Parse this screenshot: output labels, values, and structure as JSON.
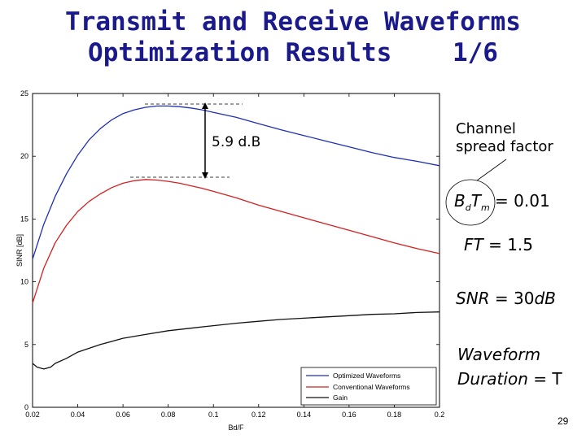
{
  "slide": {
    "title_line1": "Transmit and Receive Waveforms",
    "title_line2": "Optimization Results    1/6",
    "page_number": "29"
  },
  "annotations": {
    "gap_label": "5.9 d.B",
    "channel_label_line1": "Channel",
    "channel_label_line2": "spread factor"
  },
  "equations": {
    "bd_tm": {
      "lhs_main1": "B",
      "lhs_sub1": "d",
      "lhs_main2": "T",
      "lhs_sub2": "m",
      "rhs": "= 0.01"
    },
    "ft": {
      "lhs": "FT",
      "rhs": "= 1.5"
    },
    "snr": {
      "lhs": "SNR",
      "eq": " = 30",
      "unit": "dB"
    },
    "waveform_line1": "Waveform",
    "duration": {
      "lhs": "Duration",
      "rhs": " = T"
    }
  },
  "colors": {
    "title": "#1a1a8c",
    "optimized": "#1f2fb5",
    "conventional": "#d42020",
    "gain": "#111111"
  },
  "chart_data": {
    "type": "line",
    "title": "",
    "xlabel": "Bd/F",
    "ylabel": "SINR [dB]",
    "xlim": [
      0.02,
      0.2
    ],
    "ylim": [
      0,
      25
    ],
    "xticks": [
      "0.02",
      "0.04",
      "0.06",
      "0.08",
      "0.1",
      "0.12",
      "0.14",
      "0.16",
      "0.18",
      "0.2"
    ],
    "yticks": [
      "0",
      "5",
      "10",
      "15",
      "20",
      "25"
    ],
    "legend_position": "bottom-right",
    "series": [
      {
        "name": "Optimized Waveforms",
        "color": "#1f2fb5",
        "x": [
          0.02,
          0.025,
          0.03,
          0.035,
          0.04,
          0.045,
          0.05,
          0.055,
          0.06,
          0.065,
          0.07,
          0.075,
          0.08,
          0.085,
          0.09,
          0.095,
          0.1,
          0.11,
          0.12,
          0.13,
          0.14,
          0.15,
          0.16,
          0.17,
          0.18,
          0.19,
          0.2
        ],
        "y": [
          11.8,
          14.6,
          16.8,
          18.6,
          20.1,
          21.3,
          22.2,
          22.9,
          23.4,
          23.7,
          23.9,
          24.0,
          24.0,
          23.95,
          23.85,
          23.7,
          23.5,
          23.1,
          22.6,
          22.1,
          21.65,
          21.2,
          20.75,
          20.3,
          19.9,
          19.6,
          19.25
        ]
      },
      {
        "name": "Conventional Waveforms",
        "color": "#d42020",
        "x": [
          0.02,
          0.025,
          0.03,
          0.035,
          0.04,
          0.045,
          0.05,
          0.055,
          0.06,
          0.065,
          0.07,
          0.075,
          0.08,
          0.085,
          0.09,
          0.095,
          0.1,
          0.11,
          0.12,
          0.13,
          0.14,
          0.15,
          0.16,
          0.17,
          0.18,
          0.19,
          0.2
        ],
        "y": [
          8.3,
          11.1,
          13.1,
          14.5,
          15.6,
          16.4,
          17.0,
          17.5,
          17.85,
          18.05,
          18.15,
          18.1,
          18.0,
          17.85,
          17.65,
          17.45,
          17.2,
          16.7,
          16.1,
          15.6,
          15.1,
          14.6,
          14.1,
          13.6,
          13.1,
          12.65,
          12.25
        ]
      },
      {
        "name": "Gain",
        "color": "#111111",
        "x": [
          0.02,
          0.022,
          0.025,
          0.028,
          0.03,
          0.035,
          0.04,
          0.05,
          0.06,
          0.07,
          0.08,
          0.09,
          0.1,
          0.11,
          0.12,
          0.13,
          0.14,
          0.15,
          0.16,
          0.17,
          0.18,
          0.19,
          0.2
        ],
        "y": [
          3.5,
          3.2,
          3.05,
          3.2,
          3.5,
          3.9,
          4.4,
          5.0,
          5.5,
          5.8,
          6.1,
          6.3,
          6.5,
          6.7,
          6.85,
          7.0,
          7.1,
          7.2,
          7.3,
          7.4,
          7.45,
          7.55,
          7.6
        ]
      }
    ]
  }
}
